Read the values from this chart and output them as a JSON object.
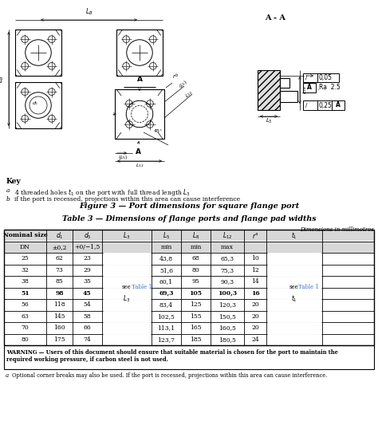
{
  "figure_caption": "Figure 3 — Port dimensions for square flange port",
  "table_title": "Table 3 — Dimensions of flange ports and flange pad widths",
  "dim_note": "Dimensions in millimetres",
  "warning_text": "WARNING — Users of this document should ensure that suitable material is chosen for the port to maintain the required working pressure, if carbon steel is not used.",
  "footnote_a": "Optional corner breaks may also be used. If the port is recessed, projections within this area can cause interference.",
  "col_headers": [
    "Nominal size",
    "$d_1$",
    "$d_5$",
    "$L_3$",
    "$L_5$",
    "$L_8$",
    "$L_{12}$",
    "$r^a$",
    "$t_1$"
  ],
  "col_subheaders": [
    "DN",
    "±0,2",
    "+0/−1,5",
    "",
    "min",
    "min",
    "max",
    ""
  ],
  "rows": [
    [
      "25",
      "62",
      "23",
      "",
      "43,8",
      "68",
      "65,3",
      "10",
      ""
    ],
    [
      "32",
      "73",
      "29",
      "",
      "51,6",
      "80",
      "75,3",
      "12",
      ""
    ],
    [
      "38",
      "85",
      "35",
      "",
      "60,1",
      "95",
      "90,3",
      "14",
      ""
    ],
    [
      "51",
      "98",
      "45",
      "merged_l3",
      "69,3",
      "105",
      "100,3",
      "16",
      "merged_t1"
    ],
    [
      "56",
      "118",
      "54",
      "",
      "83,4",
      "125",
      "120,3",
      "20",
      ""
    ],
    [
      "63",
      "145",
      "58",
      "",
      "102,5",
      "155",
      "150,5",
      "20",
      ""
    ],
    [
      "70",
      "160",
      "66",
      "",
      "113,1",
      "165",
      "160,5",
      "20",
      ""
    ],
    [
      "80",
      "175",
      "74",
      "",
      "123,7",
      "185",
      "180,5",
      "24",
      ""
    ]
  ],
  "bold_rows": [
    3
  ],
  "bg_color": "#ffffff",
  "link_color": "#4472C4",
  "merged_l3_rows": [
    3,
    4
  ],
  "merged_t1_rows": [
    3,
    4
  ]
}
